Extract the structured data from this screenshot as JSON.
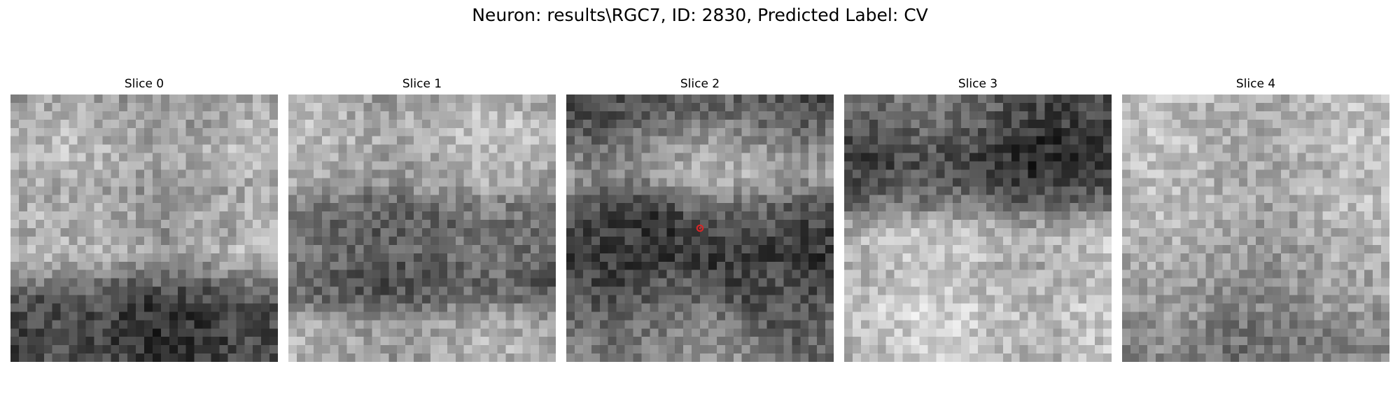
{
  "figure": {
    "title": "Neuron: results\\RGC7, ID: 2830, Predicted Label: CV",
    "grid_size": 32,
    "colormap": "gray",
    "marker": {
      "color": "#d62728",
      "panel_index": 2,
      "cell": [
        15.5,
        15.5
      ]
    },
    "panels": [
      {
        "title": "Slice 0",
        "layout": [
          [
            0.0,
            0.6
          ],
          [
            0.05,
            0.63
          ],
          [
            0.1,
            0.65
          ],
          [
            0.16,
            0.68
          ],
          [
            0.22,
            0.7
          ],
          [
            0.28,
            0.68
          ],
          [
            0.34,
            0.62
          ],
          [
            0.45,
            0.66
          ],
          [
            0.53,
            0.62
          ],
          [
            0.58,
            0.7
          ],
          [
            0.66,
            0.54
          ],
          [
            0.7,
            0.44
          ],
          [
            0.76,
            0.3
          ],
          [
            0.82,
            0.26
          ],
          [
            0.9,
            0.24
          ],
          [
            1.0,
            0.28
          ]
        ]
      },
      {
        "title": "Slice 1",
        "layout": [
          [
            0.0,
            0.64
          ],
          [
            0.08,
            0.7
          ],
          [
            0.16,
            0.72
          ],
          [
            0.26,
            0.66
          ],
          [
            0.34,
            0.62
          ],
          [
            0.4,
            0.46
          ],
          [
            0.48,
            0.4
          ],
          [
            0.56,
            0.42
          ],
          [
            0.62,
            0.4
          ],
          [
            0.7,
            0.36
          ],
          [
            0.76,
            0.4
          ],
          [
            0.84,
            0.6
          ],
          [
            0.92,
            0.66
          ],
          [
            1.0,
            0.64
          ]
        ]
      },
      {
        "title": "Slice 2",
        "layout": [
          [
            0.0,
            0.34
          ],
          [
            0.08,
            0.4
          ],
          [
            0.16,
            0.52
          ],
          [
            0.24,
            0.62
          ],
          [
            0.3,
            0.66
          ],
          [
            0.38,
            0.48
          ],
          [
            0.44,
            0.36
          ],
          [
            0.52,
            0.3
          ],
          [
            0.6,
            0.26
          ],
          [
            0.68,
            0.32
          ],
          [
            0.76,
            0.38
          ],
          [
            0.84,
            0.46
          ],
          [
            0.92,
            0.5
          ],
          [
            1.0,
            0.54
          ]
        ]
      },
      {
        "title": "Slice 3",
        "layout": [
          [
            0.0,
            0.44
          ],
          [
            0.08,
            0.4
          ],
          [
            0.16,
            0.32
          ],
          [
            0.26,
            0.26
          ],
          [
            0.34,
            0.34
          ],
          [
            0.42,
            0.46
          ],
          [
            0.48,
            0.66
          ],
          [
            0.56,
            0.76
          ],
          [
            0.64,
            0.72
          ],
          [
            0.72,
            0.72
          ],
          [
            0.8,
            0.8
          ],
          [
            0.9,
            0.76
          ],
          [
            1.0,
            0.74
          ]
        ]
      },
      {
        "title": "Slice 4",
        "layout": [
          [
            0.0,
            0.72
          ],
          [
            0.1,
            0.7
          ],
          [
            0.2,
            0.72
          ],
          [
            0.3,
            0.68
          ],
          [
            0.4,
            0.7
          ],
          [
            0.5,
            0.66
          ],
          [
            0.6,
            0.64
          ],
          [
            0.7,
            0.6
          ],
          [
            0.8,
            0.56
          ],
          [
            0.88,
            0.5
          ],
          [
            1.0,
            0.48
          ]
        ]
      }
    ]
  }
}
